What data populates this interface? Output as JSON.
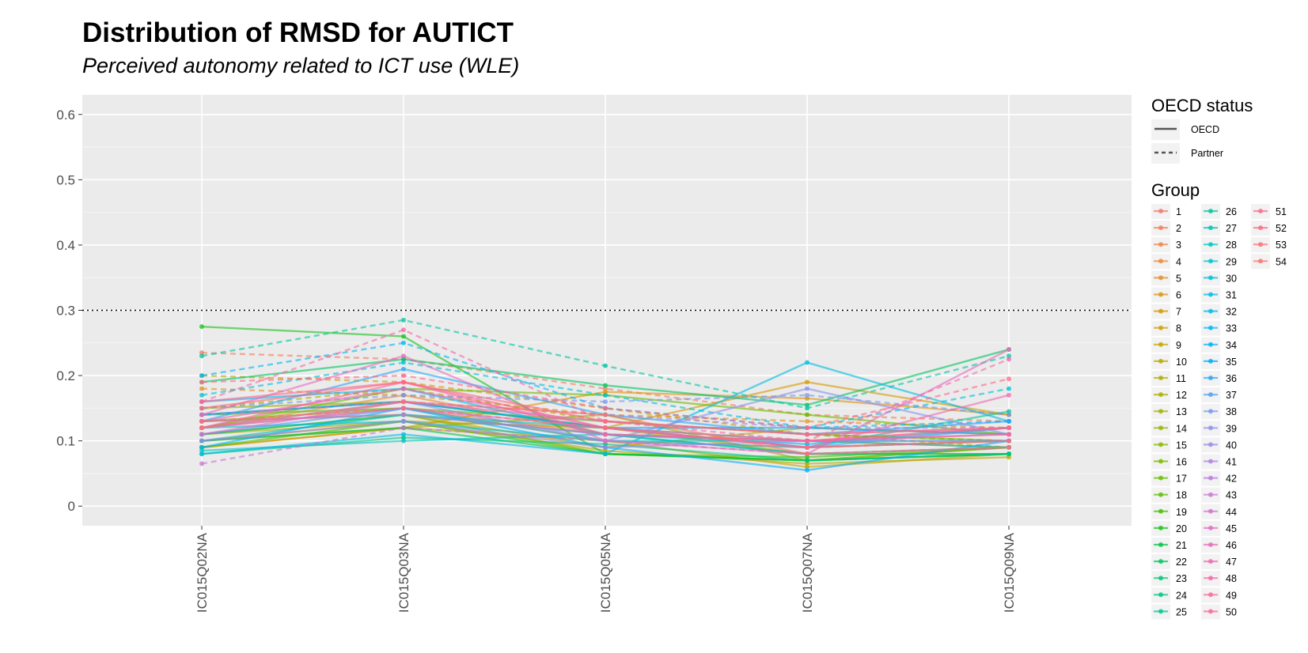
{
  "chart_data": {
    "type": "line",
    "title": "Distribution of RMSD for AUTICT",
    "subtitle": "Perceived autonomy related to ICT use (WLE)",
    "xlabel": "",
    "ylabel": "",
    "categories": [
      "IC015Q02NA",
      "IC015Q03NA",
      "IC015Q05NA",
      "IC015Q07NA",
      "IC015Q09NA"
    ],
    "ylim": [
      -0.03,
      0.63
    ],
    "yticks": [
      0,
      0.1,
      0.2,
      0.3,
      0.4,
      0.5,
      0.6
    ],
    "ytick_labels": [
      "0",
      "0.1",
      "0.2",
      "0.3",
      "0.4",
      "0.5",
      "0.6"
    ],
    "reference_line": 0.3,
    "grid": true,
    "legend_position": "right",
    "legend_linetype": {
      "title": "OECD status",
      "entries": [
        {
          "label": "OECD",
          "style": "solid"
        },
        {
          "label": "Partner",
          "style": "dashed"
        }
      ]
    },
    "legend_group_title": "Group",
    "series": [
      {
        "name": "1",
        "status": "OECD",
        "color": "#f8766d",
        "values": [
          0.12,
          0.15,
          0.11,
          0.1,
          0.12
        ]
      },
      {
        "name": "2",
        "status": "Partner",
        "color": "#f47d5b",
        "values": [
          0.235,
          0.225,
          0.18,
          0.14,
          0.13
        ]
      },
      {
        "name": "3",
        "status": "OECD",
        "color": "#ef8448",
        "values": [
          0.14,
          0.16,
          0.12,
          0.09,
          0.1
        ]
      },
      {
        "name": "4",
        "status": "OECD",
        "color": "#e98a36",
        "values": [
          0.12,
          0.17,
          0.11,
          0.1,
          0.09
        ]
      },
      {
        "name": "5",
        "status": "Partner",
        "color": "#e39024",
        "values": [
          0.18,
          0.17,
          0.14,
          0.13,
          0.12
        ]
      },
      {
        "name": "6",
        "status": "OECD",
        "color": "#dc9511",
        "values": [
          0.09,
          0.12,
          0.175,
          0.165,
          0.14
        ]
      },
      {
        "name": "7",
        "status": "OECD",
        "color": "#d59a00",
        "values": [
          0.1,
          0.13,
          0.12,
          0.19,
          0.14
        ]
      },
      {
        "name": "8",
        "status": "Partner",
        "color": "#cd9f00",
        "values": [
          0.2,
          0.19,
          0.15,
          0.11,
          0.1
        ]
      },
      {
        "name": "9",
        "status": "OECD",
        "color": "#c5a300",
        "values": [
          0.09,
          0.12,
          0.1,
          0.06,
          0.08
        ]
      },
      {
        "name": "10",
        "status": "OECD",
        "color": "#bca800",
        "values": [
          0.13,
          0.14,
          0.09,
          0.12,
          0.11
        ]
      },
      {
        "name": "11",
        "status": "OECD",
        "color": "#b3ac00",
        "values": [
          0.11,
          0.13,
          0.085,
          0.065,
          0.075
        ]
      },
      {
        "name": "12",
        "status": "Partner",
        "color": "#a9af00",
        "values": [
          0.15,
          0.18,
          0.13,
          0.11,
          0.09
        ]
      },
      {
        "name": "13",
        "status": "OECD",
        "color": "#9fb300",
        "values": [
          0.15,
          0.16,
          0.12,
          0.08,
          0.08
        ]
      },
      {
        "name": "14",
        "status": "OECD",
        "color": "#94b600",
        "values": [
          0.1,
          0.12,
          0.14,
          0.07,
          0.09
        ]
      },
      {
        "name": "15",
        "status": "OECD",
        "color": "#88b800",
        "values": [
          0.13,
          0.15,
          0.1,
          0.09,
          0.1
        ]
      },
      {
        "name": "16",
        "status": "OECD",
        "color": "#7bbb00",
        "values": [
          0.11,
          0.14,
          0.08,
          0.07,
          0.09
        ]
      },
      {
        "name": "17",
        "status": "OECD",
        "color": "#6cbd00",
        "values": [
          0.12,
          0.18,
          0.17,
          0.14,
          0.11
        ]
      },
      {
        "name": "18",
        "status": "OECD",
        "color": "#5abf00",
        "values": [
          0.14,
          0.15,
          0.13,
          0.11,
          0.1
        ]
      },
      {
        "name": "19",
        "status": "OECD",
        "color": "#43c100",
        "values": [
          0.09,
          0.13,
          0.08,
          0.075,
          0.09
        ]
      },
      {
        "name": "20",
        "status": "OECD",
        "color": "#1bc31d",
        "values": [
          0.275,
          0.26,
          0.08,
          0.07,
          0.08
        ]
      },
      {
        "name": "21",
        "status": "OECD",
        "color": "#00c447",
        "values": [
          0.1,
          0.12,
          0.08,
          0.07,
          0.08
        ]
      },
      {
        "name": "22",
        "status": "OECD",
        "color": "#00c560",
        "values": [
          0.19,
          0.225,
          0.185,
          0.155,
          0.24
        ]
      },
      {
        "name": "23",
        "status": "OECD",
        "color": "#00c674",
        "values": [
          0.11,
          0.14,
          0.11,
          0.08,
          0.08
        ]
      },
      {
        "name": "24",
        "status": "OECD",
        "color": "#00c686",
        "values": [
          0.08,
          0.105,
          0.095,
          0.07,
          0.08
        ]
      },
      {
        "name": "25",
        "status": "OECD",
        "color": "#00c696",
        "values": [
          0.14,
          0.16,
          0.12,
          0.09,
          0.145
        ]
      },
      {
        "name": "26",
        "status": "Partner",
        "color": "#00c6a5",
        "values": [
          0.23,
          0.285,
          0.215,
          0.15,
          0.23
        ]
      },
      {
        "name": "27",
        "status": "OECD",
        "color": "#00c5b3",
        "values": [
          0.1,
          0.14,
          0.12,
          0.1,
          0.09
        ]
      },
      {
        "name": "28",
        "status": "OECD",
        "color": "#00c4c0",
        "values": [
          0.085,
          0.1,
          0.11,
          0.08,
          0.09
        ]
      },
      {
        "name": "29",
        "status": "OECD",
        "color": "#00c2cd",
        "values": [
          0.12,
          0.13,
          0.1,
          0.1,
          0.1
        ]
      },
      {
        "name": "30",
        "status": "Partner",
        "color": "#00c0d8",
        "values": [
          0.17,
          0.22,
          0.17,
          0.12,
          0.18
        ]
      },
      {
        "name": "31",
        "status": "OECD",
        "color": "#00bde3",
        "values": [
          0.08,
          0.11,
          0.08,
          0.22,
          0.13
        ]
      },
      {
        "name": "32",
        "status": "OECD",
        "color": "#00baed",
        "values": [
          0.16,
          0.18,
          0.11,
          0.095,
          0.12
        ]
      },
      {
        "name": "33",
        "status": "Partner",
        "color": "#00b6f6",
        "values": [
          0.2,
          0.25,
          0.15,
          0.12,
          0.13
        ]
      },
      {
        "name": "34",
        "status": "OECD",
        "color": "#00b1fd",
        "values": [
          0.09,
          0.15,
          0.09,
          0.055,
          0.1
        ]
      },
      {
        "name": "35",
        "status": "OECD",
        "color": "#00acfc",
        "values": [
          0.14,
          0.16,
          0.12,
          0.12,
          0.11
        ]
      },
      {
        "name": "36",
        "status": "OECD",
        "color": "#2ba6f9",
        "values": [
          0.13,
          0.21,
          0.14,
          0.11,
          0.13
        ]
      },
      {
        "name": "37",
        "status": "OECD",
        "color": "#579ff5",
        "values": [
          0.11,
          0.15,
          0.1,
          0.09,
          0.12
        ]
      },
      {
        "name": "38",
        "status": "Partner",
        "color": "#7598f1",
        "values": [
          0.15,
          0.17,
          0.16,
          0.17,
          0.14
        ]
      },
      {
        "name": "39",
        "status": "OECD",
        "color": "#8b91ec",
        "values": [
          0.12,
          0.16,
          0.1,
          0.18,
          0.11
        ]
      },
      {
        "name": "40",
        "status": "OECD",
        "color": "#9d8ae7",
        "values": [
          0.1,
          0.13,
          0.09,
          0.1,
          0.1
        ]
      },
      {
        "name": "41",
        "status": "Partner",
        "color": "#ae83e1",
        "values": [
          0.14,
          0.16,
          0.14,
          0.12,
          0.12
        ]
      },
      {
        "name": "42",
        "status": "OECD",
        "color": "#bc7ddb",
        "values": [
          0.13,
          0.14,
          0.11,
          0.1,
          0.11
        ]
      },
      {
        "name": "43",
        "status": "Partner",
        "color": "#c977d4",
        "values": [
          0.065,
          0.12,
          0.1,
          0.08,
          0.09
        ]
      },
      {
        "name": "44",
        "status": "OECD",
        "color": "#d472cd",
        "values": [
          0.12,
          0.15,
          0.12,
          0.09,
          0.1
        ]
      },
      {
        "name": "45",
        "status": "OECD",
        "color": "#de6ec5",
        "values": [
          0.11,
          0.16,
          0.13,
          0.11,
          0.12
        ]
      },
      {
        "name": "46",
        "status": "OECD",
        "color": "#e76bbc",
        "values": [
          0.14,
          0.23,
          0.1,
          0.08,
          0.24
        ]
      },
      {
        "name": "47",
        "status": "OECD",
        "color": "#ee69b3",
        "values": [
          0.13,
          0.18,
          0.12,
          0.09,
          0.17
        ]
      },
      {
        "name": "48",
        "status": "Partner",
        "color": "#f567a9",
        "values": [
          0.16,
          0.27,
          0.13,
          0.1,
          0.225
        ]
      },
      {
        "name": "49",
        "status": "OECD",
        "color": "#fa669f",
        "values": [
          0.12,
          0.19,
          0.11,
          0.1,
          0.12
        ]
      },
      {
        "name": "50",
        "status": "OECD",
        "color": "#fd6695",
        "values": [
          0.16,
          0.19,
          0.12,
          0.1,
          0.11
        ]
      },
      {
        "name": "51",
        "status": "Partner",
        "color": "#ff688a",
        "values": [
          0.19,
          0.2,
          0.15,
          0.12,
          0.195
        ]
      },
      {
        "name": "52",
        "status": "OECD",
        "color": "#fe6b80",
        "values": [
          0.15,
          0.19,
          0.13,
          0.11,
          0.12
        ]
      },
      {
        "name": "53",
        "status": "Partner",
        "color": "#fc6f76",
        "values": [
          0.13,
          0.15,
          0.12,
          0.09,
          0.1
        ]
      },
      {
        "name": "54",
        "status": "OECD",
        "color": "#f9746d",
        "values": [
          0.12,
          0.16,
          0.14,
          0.08,
          0.09
        ]
      }
    ]
  }
}
